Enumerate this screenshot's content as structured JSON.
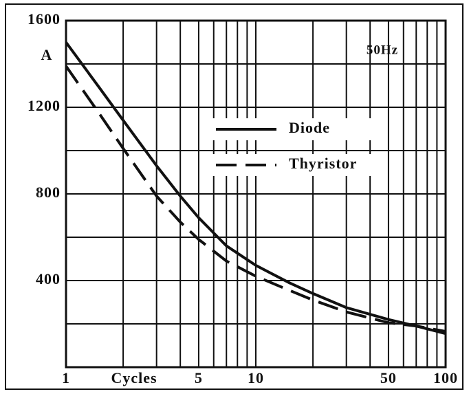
{
  "chart_data": {
    "type": "line",
    "y_label": "A",
    "x_label": "Cycles",
    "annotation": "50Hz",
    "log_x": true,
    "xlim": [
      1,
      100
    ],
    "xticks": [
      1,
      5,
      10,
      50,
      100
    ],
    "xgrid": [
      2,
      3,
      4,
      5,
      6,
      7,
      8,
      9,
      10,
      20,
      30,
      40,
      50,
      60,
      70,
      80,
      90
    ],
    "ylim": [
      0,
      1600
    ],
    "yticks": [
      400,
      800,
      1200,
      1600
    ],
    "ygrid": [
      200,
      400,
      600,
      800,
      1000,
      1200,
      1400
    ],
    "x": [
      1,
      1.5,
      2,
      3,
      4,
      5,
      7,
      10,
      15,
      20,
      30,
      50,
      70,
      100
    ],
    "series": [
      {
        "name": "Diode",
        "color": "#111111",
        "dashed": false,
        "values": [
          1500,
          1290,
          1140,
          930,
          790,
          690,
          560,
          470,
          390,
          340,
          275,
          220,
          190,
          155
        ]
      },
      {
        "name": "Thyristor",
        "color": "#111111",
        "dashed": true,
        "values": [
          1390,
          1170,
          1010,
          790,
          670,
          590,
          490,
          420,
          355,
          310,
          255,
          205,
          190,
          165
        ]
      }
    ]
  }
}
